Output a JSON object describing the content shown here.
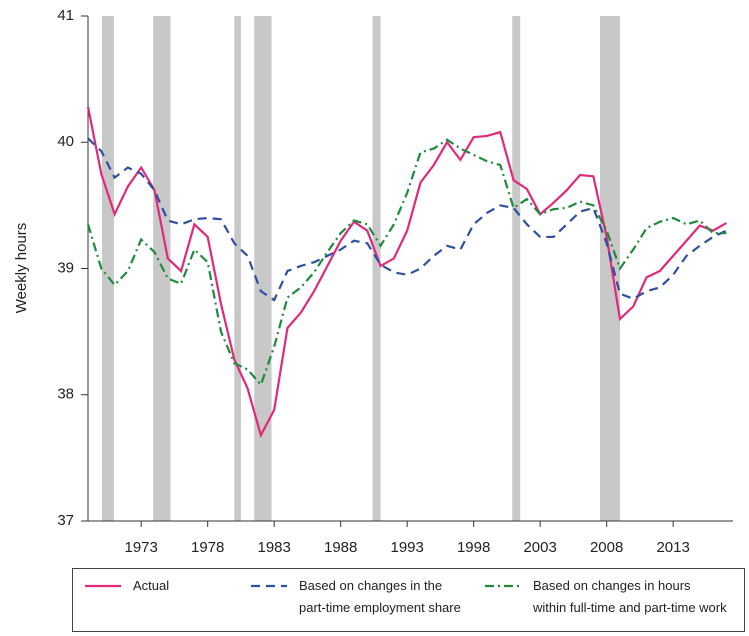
{
  "chart_data": {
    "type": "line",
    "y_label": "Weekly hours",
    "x": [
      1969,
      1970,
      1971,
      1972,
      1973,
      1974,
      1975,
      1976,
      1977,
      1978,
      1979,
      1980,
      1981,
      1982,
      1983,
      1984,
      1985,
      1986,
      1987,
      1988,
      1989,
      1990,
      1991,
      1992,
      1993,
      1994,
      1995,
      1996,
      1997,
      1998,
      1999,
      2000,
      2001,
      2002,
      2003,
      2004,
      2005,
      2006,
      2007,
      2008,
      2009,
      2010,
      2011,
      2012,
      2013,
      2014,
      2015,
      2016,
      2017
    ],
    "series": [
      {
        "name": "Actual",
        "color": "#e0297a",
        "dash": "solid",
        "values": [
          40.28,
          39.75,
          39.43,
          39.65,
          39.8,
          39.62,
          39.08,
          38.98,
          39.35,
          39.25,
          38.72,
          38.28,
          38.05,
          37.68,
          37.88,
          38.53,
          38.65,
          38.82,
          39.02,
          39.22,
          39.37,
          39.3,
          39.02,
          39.08,
          39.3,
          39.68,
          39.82,
          40.0,
          39.86,
          40.04,
          40.05,
          40.08,
          39.7,
          39.63,
          39.43,
          39.52,
          39.62,
          39.74,
          39.73,
          39.25,
          38.6,
          38.7,
          38.93,
          38.98,
          39.1,
          39.22,
          39.34,
          39.3,
          39.36
        ]
      },
      {
        "name": "Based on changes in the\npart-time employment share",
        "color": "#2f4fa0",
        "dash": "dash",
        "values": [
          40.03,
          39.93,
          39.72,
          39.8,
          39.75,
          39.62,
          39.38,
          39.35,
          39.39,
          39.4,
          39.39,
          39.2,
          39.1,
          38.82,
          38.75,
          38.98,
          39.02,
          39.05,
          39.1,
          39.15,
          39.22,
          39.2,
          39.03,
          38.97,
          38.95,
          39.0,
          39.1,
          39.18,
          39.15,
          39.35,
          39.44,
          39.5,
          39.48,
          39.35,
          39.25,
          39.25,
          39.35,
          39.45,
          39.48,
          39.2,
          38.8,
          38.76,
          38.82,
          38.85,
          38.95,
          39.1,
          39.18,
          39.25,
          39.3
        ]
      },
      {
        "name": "Based on changes in hours\nwithin full-time and part-time work",
        "color": "#1f8a3c",
        "dash": "dashdot",
        "values": [
          39.35,
          39.0,
          38.87,
          38.98,
          39.23,
          39.13,
          38.92,
          38.88,
          39.15,
          39.05,
          38.5,
          38.25,
          38.2,
          38.08,
          38.38,
          38.77,
          38.85,
          38.97,
          39.13,
          39.28,
          39.38,
          39.35,
          39.18,
          39.35,
          39.6,
          39.92,
          39.95,
          40.02,
          39.95,
          39.9,
          39.85,
          39.82,
          39.48,
          39.55,
          39.43,
          39.47,
          39.48,
          39.53,
          39.5,
          39.3,
          39.0,
          39.15,
          39.32,
          39.37,
          39.4,
          39.35,
          39.38,
          39.28,
          39.28
        ]
      }
    ],
    "recessions": [
      [
        1970.05,
        1970.95
      ],
      [
        1973.9,
        1975.2
      ],
      [
        1980.0,
        1980.5
      ],
      [
        1981.5,
        1982.8
      ],
      [
        1990.4,
        1991.0
      ],
      [
        2000.9,
        2001.5
      ],
      [
        2007.5,
        2009.0
      ]
    ],
    "recession_color": "#c8c8c8",
    "xlim": [
      1969,
      2017.5
    ],
    "xticks": [
      1973,
      1978,
      1983,
      1988,
      1993,
      1998,
      2003,
      2008,
      2013
    ],
    "ylim": [
      37,
      41
    ],
    "yticks": [
      37,
      38,
      39,
      40,
      41
    ]
  }
}
